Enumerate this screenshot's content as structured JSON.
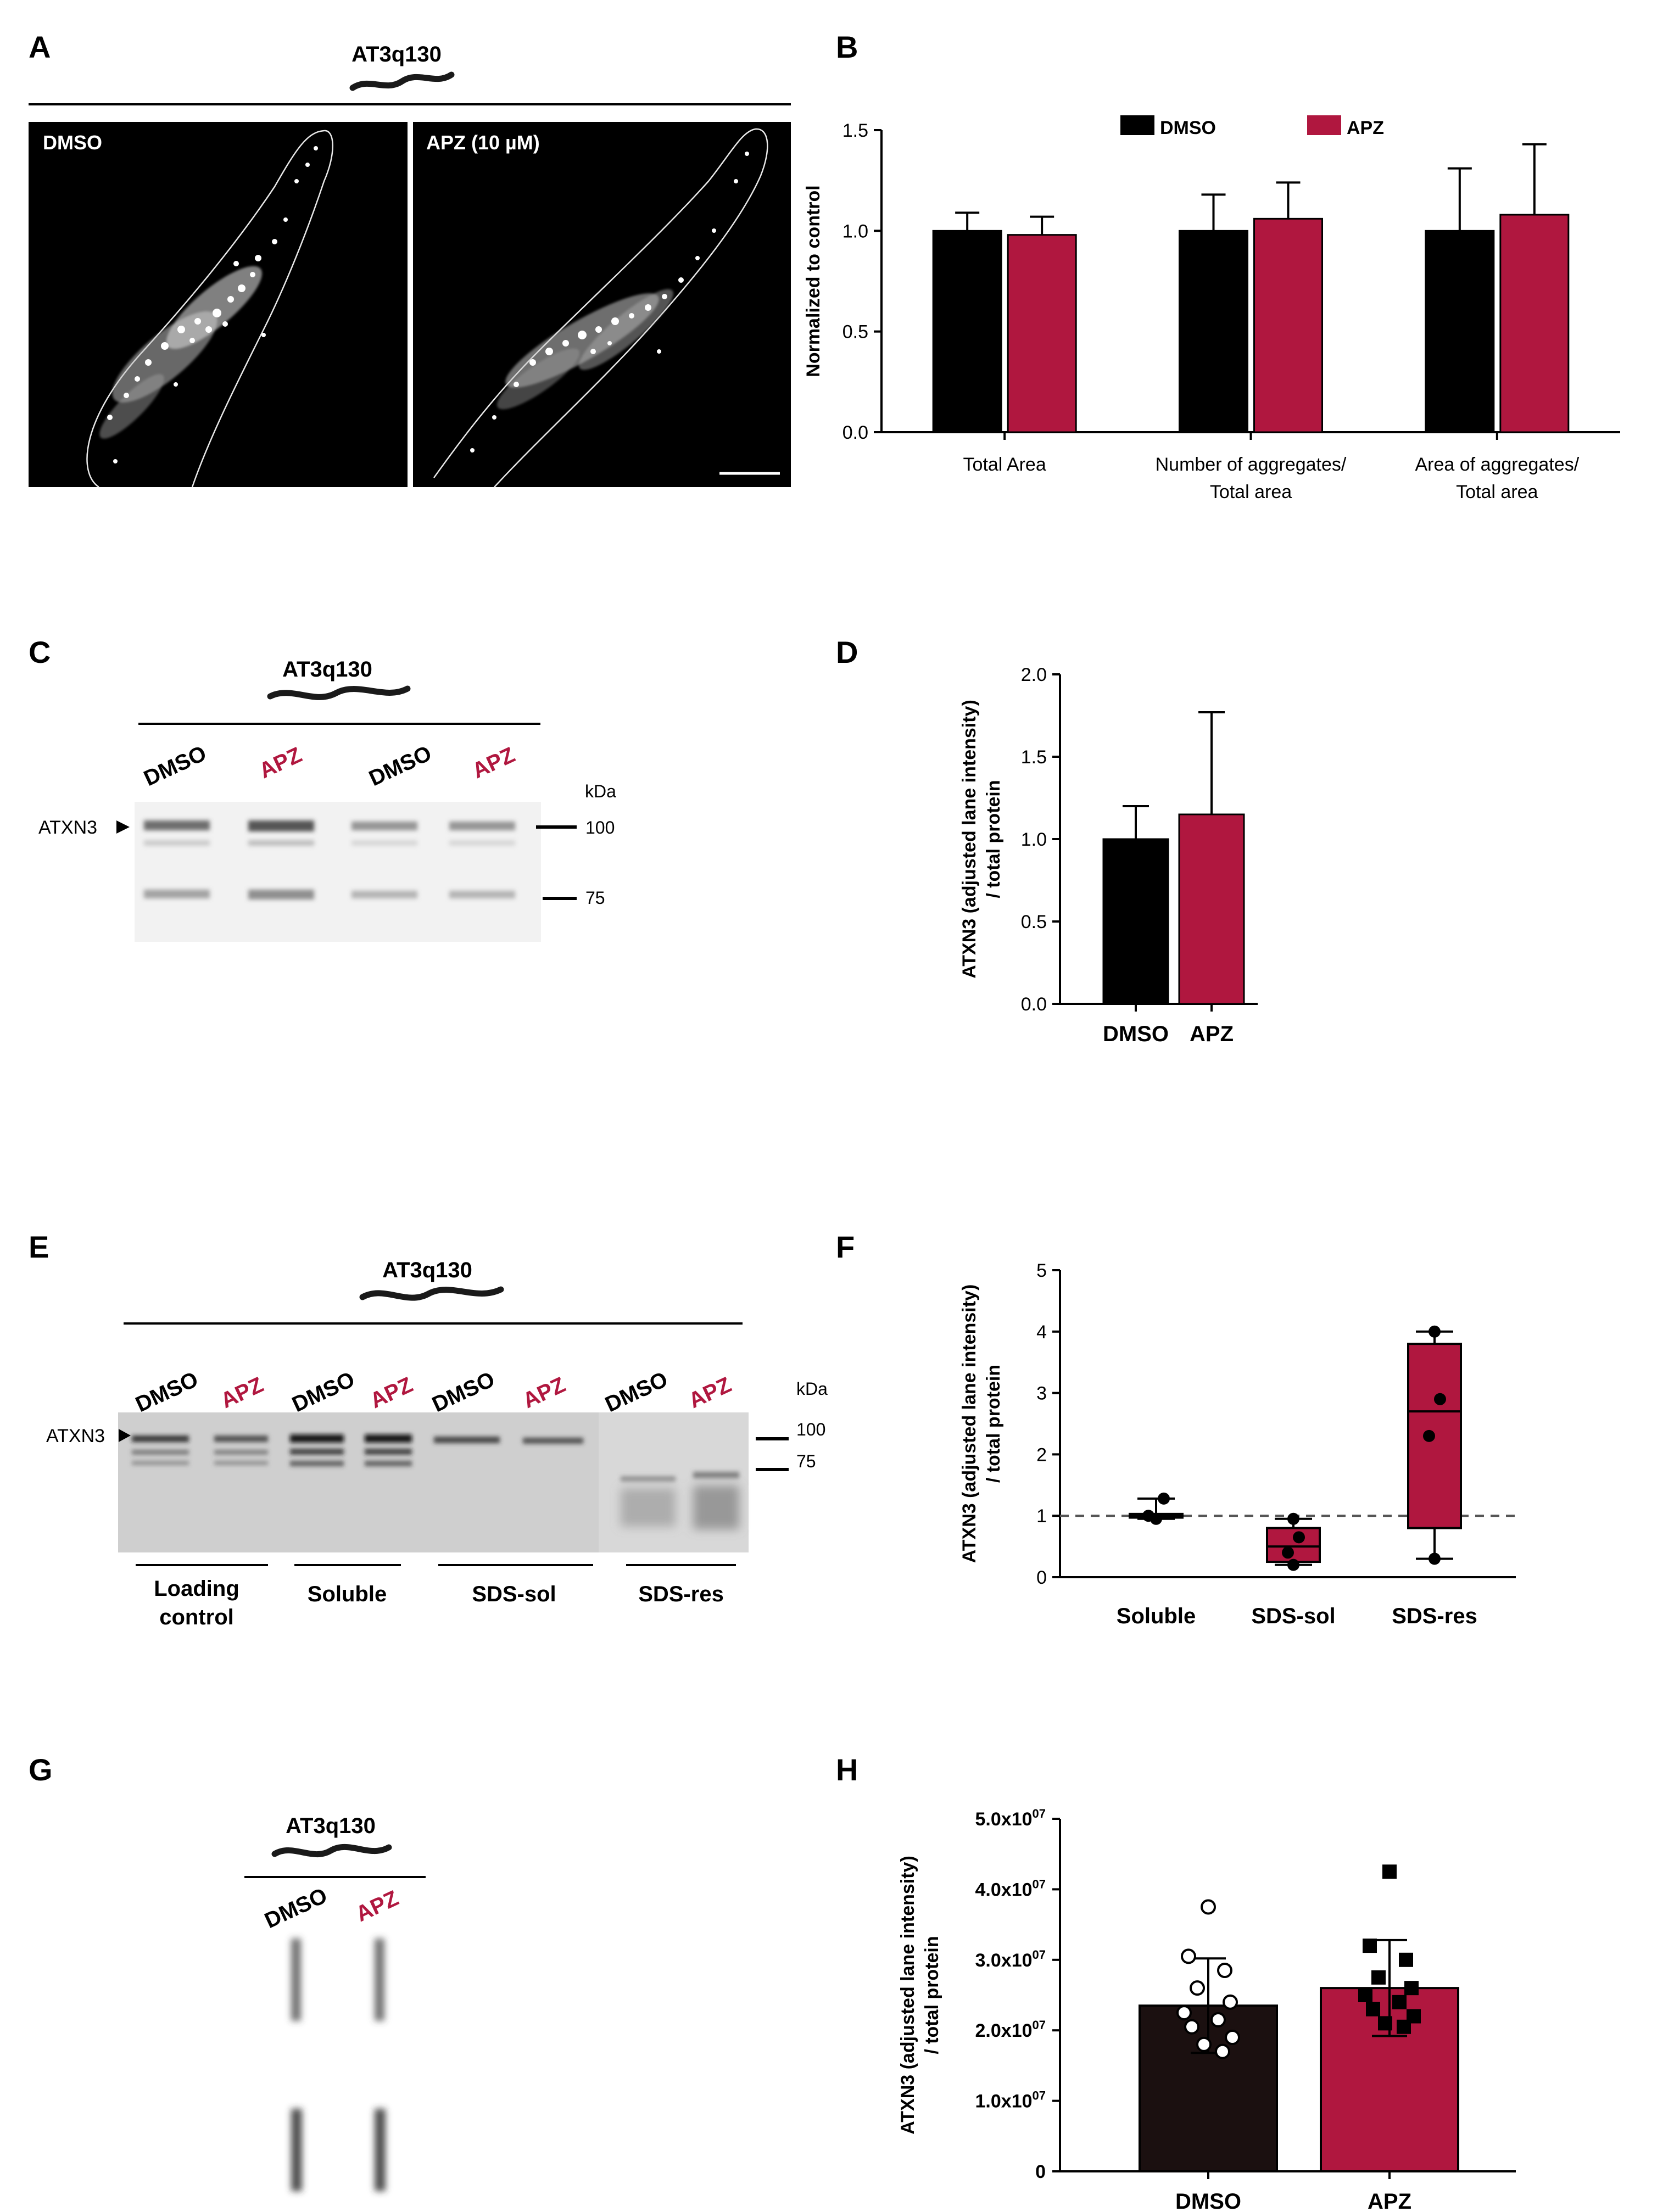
{
  "figure": {
    "panel_letters": [
      "A",
      "B",
      "C",
      "D",
      "E",
      "F",
      "G",
      "H"
    ],
    "strain": "AT3q130",
    "colors": {
      "dmso": "#000000",
      "dmso_h": "#1b1010",
      "apz": "#b0173f"
    }
  },
  "panel_a": {
    "left_label": "DMSO",
    "right_label": "APZ (10 µM)"
  },
  "panel_c": {
    "lanes": [
      "DMSO",
      "APZ",
      "DMSO",
      "APZ"
    ],
    "band_label": "ATXN3",
    "kda_label": "kDa",
    "markers": [
      "100",
      "75"
    ]
  },
  "panel_e": {
    "lanes": [
      "DMSO",
      "APZ",
      "DMSO",
      "APZ",
      "DMSO",
      "APZ",
      "DMSO",
      "APZ"
    ],
    "band_label": "ATXN3",
    "kda_label": "kDa",
    "markers": [
      "100",
      "75"
    ],
    "fractions": [
      "Loading",
      "control",
      "Soluble",
      "SDS-sol",
      "SDS-res"
    ]
  },
  "panel_g": {
    "lanes": [
      "DMSO",
      "APZ"
    ]
  },
  "chart_data": [
    {
      "panel": "B",
      "type": "bar",
      "categories": [
        "Total Area",
        "Number of aggregates/ Total area",
        "Area of aggregates/ Total area"
      ],
      "category_lines": [
        [
          "Total Area"
        ],
        [
          "Number of aggregates/",
          "Total area"
        ],
        [
          "Area of aggregates/",
          "Total area"
        ]
      ],
      "series": [
        {
          "name": "DMSO",
          "color": "#000000",
          "values": [
            1.0,
            1.0,
            1.0
          ],
          "errors": [
            0.09,
            0.18,
            0.31
          ]
        },
        {
          "name": "APZ",
          "color": "#b0173f",
          "values": [
            0.98,
            1.06,
            1.08
          ],
          "errors": [
            0.09,
            0.18,
            0.35
          ]
        }
      ],
      "ylabel": "Normalized to control",
      "ylim": [
        0,
        1.5
      ],
      "yticks": [
        "0.0",
        "0.5",
        "1.0",
        "1.5"
      ],
      "legend": "top"
    },
    {
      "panel": "D",
      "type": "bar",
      "categories": [
        "DMSO",
        "APZ"
      ],
      "values": [
        1.0,
        1.15
      ],
      "errors": [
        0.2,
        0.62
      ],
      "colors": [
        "#000000",
        "#b0173f"
      ],
      "ylabel_lines": [
        "ATXN3 (adjusted lane intensity)",
        "/ total protein"
      ],
      "ylim": [
        0,
        2.0
      ],
      "yticks": [
        "0.0",
        "0.5",
        "1.0",
        "1.5",
        "2.0"
      ]
    },
    {
      "panel": "F",
      "type": "box",
      "categories": [
        "Soluble",
        "SDS-sol",
        "SDS-res"
      ],
      "boxes": [
        {
          "min": 0.95,
          "q1": 0.97,
          "median": 1.0,
          "q3": 1.03,
          "max": 1.28,
          "points": [
            0.95,
            1.0,
            1.28
          ]
        },
        {
          "min": 0.2,
          "q1": 0.25,
          "median": 0.5,
          "q3": 0.8,
          "max": 0.95,
          "points": [
            0.2,
            0.4,
            0.65,
            0.95
          ]
        },
        {
          "min": 0.3,
          "q1": 0.8,
          "median": 2.7,
          "q3": 3.8,
          "max": 4.0,
          "points": [
            0.3,
            2.3,
            2.9,
            4.0
          ]
        }
      ],
      "reference_line": 1,
      "ylabel_lines": [
        "ATXN3 (adjusted lane intensity)",
        "/ total protein"
      ],
      "ylim": [
        0,
        5
      ],
      "yticks": [
        "0",
        "1",
        "2",
        "3",
        "4",
        "5"
      ],
      "color": "#b0173f"
    },
    {
      "panel": "H",
      "type": "bar",
      "categories": [
        "DMSO",
        "APZ"
      ],
      "values": [
        23500000,
        26000000
      ],
      "errors": [
        6700000,
        6800000
      ],
      "colors": [
        "#1b1010",
        "#b0173f"
      ],
      "points": [
        [
          37500000,
          30500000,
          28500000,
          26000000,
          24000000,
          22500000,
          21500000,
          20500000,
          19000000,
          18000000,
          17000000
        ],
        [
          42500000,
          32000000,
          30000000,
          27500000,
          26000000,
          25000000,
          24000000,
          23000000,
          22000000,
          21000000,
          20500000
        ]
      ],
      "ylabel_lines": [
        "ATXN3 (adjusted lane intensity)",
        "/ total protein"
      ],
      "ylim": [
        0,
        50000000
      ],
      "ytick_values": [
        0,
        10000000,
        20000000,
        30000000,
        40000000,
        50000000
      ],
      "yticks": [
        "0",
        "1.0x10",
        "2.0x10",
        "3.0x10",
        "4.0x10",
        "5.0x10"
      ],
      "ytick_exponent": "07"
    }
  ]
}
